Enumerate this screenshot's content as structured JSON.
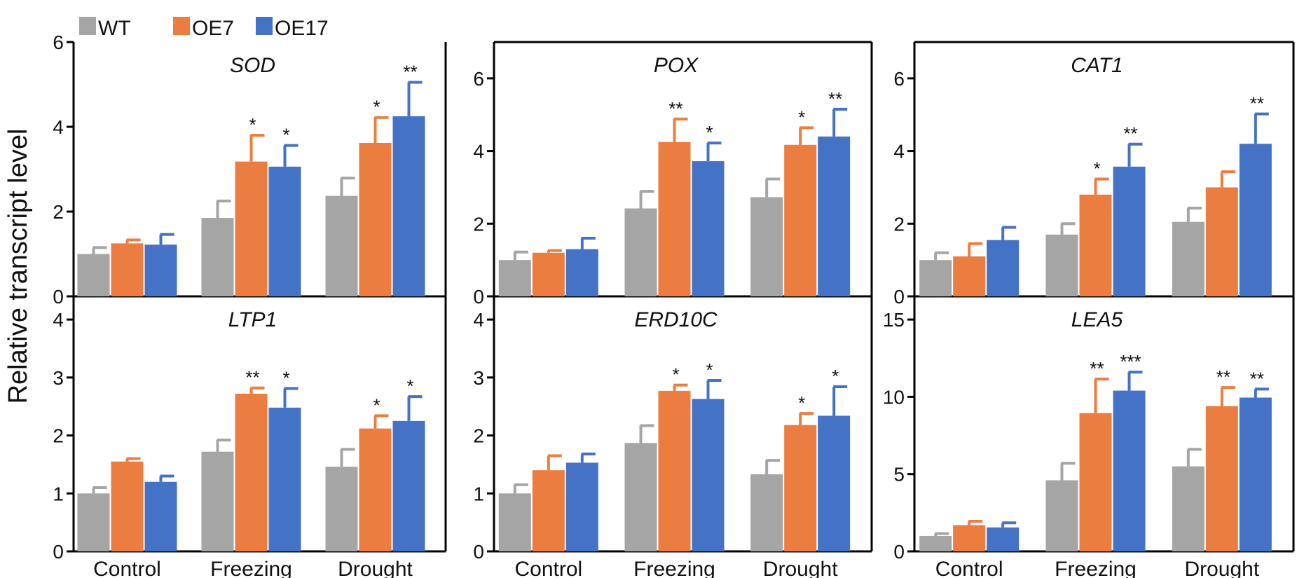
{
  "chart_data": [
    {
      "type": "bar",
      "title": "SOD",
      "categories": [
        "Control",
        "Freezing",
        "Drought"
      ],
      "ylim": [
        0,
        6
      ],
      "yticks": [
        0,
        2,
        4,
        6
      ],
      "series": [
        {
          "name": "WT",
          "values": [
            1.0,
            1.85,
            2.37
          ],
          "errors": [
            0.15,
            0.4,
            0.42
          ],
          "sig": [
            "",
            "",
            ""
          ]
        },
        {
          "name": "OE7",
          "values": [
            1.25,
            3.18,
            3.62
          ],
          "errors": [
            0.08,
            0.62,
            0.6
          ],
          "sig": [
            "",
            "*",
            "*"
          ]
        },
        {
          "name": "OE17",
          "values": [
            1.22,
            3.06,
            4.25
          ],
          "errors": [
            0.24,
            0.5,
            0.8
          ],
          "sig": [
            "",
            "*",
            "**"
          ]
        }
      ]
    },
    {
      "type": "bar",
      "title": "POX",
      "categories": [
        "Control",
        "Freezing",
        "Drought"
      ],
      "ylim": [
        0,
        7
      ],
      "yticks": [
        0,
        2,
        4,
        6
      ],
      "series": [
        {
          "name": "WT",
          "values": [
            1.0,
            2.42,
            2.73
          ],
          "errors": [
            0.22,
            0.47,
            0.5
          ],
          "sig": [
            "",
            "",
            ""
          ]
        },
        {
          "name": "OE7",
          "values": [
            1.2,
            4.25,
            4.17
          ],
          "errors": [
            0.06,
            0.63,
            0.47
          ],
          "sig": [
            "",
            "**",
            "*"
          ]
        },
        {
          "name": "OE17",
          "values": [
            1.3,
            3.72,
            4.4
          ],
          "errors": [
            0.3,
            0.5,
            0.75
          ],
          "sig": [
            "",
            "*",
            "**"
          ]
        }
      ]
    },
    {
      "type": "bar",
      "title": "CAT1",
      "categories": [
        "Control",
        "Freezing",
        "Drought"
      ],
      "ylim": [
        0,
        7
      ],
      "yticks": [
        0,
        2,
        4,
        6
      ],
      "series": [
        {
          "name": "WT",
          "values": [
            1.0,
            1.7,
            2.05
          ],
          "errors": [
            0.2,
            0.3,
            0.38
          ],
          "sig": [
            "",
            "",
            ""
          ]
        },
        {
          "name": "OE7",
          "values": [
            1.1,
            2.8,
            3.0
          ],
          "errors": [
            0.35,
            0.43,
            0.43
          ],
          "sig": [
            "",
            "*",
            ""
          ]
        },
        {
          "name": "OE17",
          "values": [
            1.55,
            3.57,
            4.2
          ],
          "errors": [
            0.35,
            0.62,
            0.82
          ],
          "sig": [
            "",
            "**",
            "**"
          ]
        }
      ]
    },
    {
      "type": "bar",
      "title": "LTP1",
      "categories": [
        "Control",
        "Freezing",
        "Drought"
      ],
      "ylim": [
        0,
        4.4
      ],
      "yticks": [
        0,
        1,
        2,
        3,
        4
      ],
      "series": [
        {
          "name": "WT",
          "values": [
            1.0,
            1.72,
            1.46
          ],
          "errors": [
            0.1,
            0.2,
            0.3
          ],
          "sig": [
            "",
            "",
            ""
          ]
        },
        {
          "name": "OE7",
          "values": [
            1.55,
            2.72,
            2.12
          ],
          "errors": [
            0.05,
            0.1,
            0.22
          ],
          "sig": [
            "",
            "**",
            "*"
          ]
        },
        {
          "name": "OE17",
          "values": [
            1.2,
            2.48,
            2.25
          ],
          "errors": [
            0.1,
            0.33,
            0.42
          ],
          "sig": [
            "",
            "*",
            "*"
          ]
        }
      ]
    },
    {
      "type": "bar",
      "title": "ERD10C",
      "categories": [
        "Control",
        "Freezing",
        "Drought"
      ],
      "ylim": [
        0,
        4.4
      ],
      "yticks": [
        0,
        1,
        2,
        3,
        4
      ],
      "series": [
        {
          "name": "WT",
          "values": [
            1.0,
            1.87,
            1.33
          ],
          "errors": [
            0.15,
            0.3,
            0.24
          ],
          "sig": [
            "",
            "",
            ""
          ]
        },
        {
          "name": "OE7",
          "values": [
            1.4,
            2.77,
            2.18
          ],
          "errors": [
            0.25,
            0.1,
            0.2
          ],
          "sig": [
            "",
            "*",
            "*"
          ]
        },
        {
          "name": "OE17",
          "values": [
            1.53,
            2.63,
            2.34
          ],
          "errors": [
            0.15,
            0.32,
            0.5
          ],
          "sig": [
            "",
            "*",
            "*"
          ]
        }
      ]
    },
    {
      "type": "bar",
      "title": "LEA5",
      "categories": [
        "Control",
        "Freezing",
        "Drought"
      ],
      "ylim": [
        0,
        16.5
      ],
      "yticks": [
        0,
        5,
        10,
        15
      ],
      "series": [
        {
          "name": "WT",
          "values": [
            1.0,
            4.6,
            5.5
          ],
          "errors": [
            0.15,
            1.1,
            1.1
          ],
          "sig": [
            "",
            "",
            ""
          ]
        },
        {
          "name": "OE7",
          "values": [
            1.7,
            8.95,
            9.4
          ],
          "errors": [
            0.25,
            2.2,
            1.2
          ],
          "sig": [
            "",
            "**",
            "**"
          ]
        },
        {
          "name": "OE17",
          "values": [
            1.55,
            10.4,
            9.95
          ],
          "errors": [
            0.3,
            1.2,
            0.55
          ],
          "sig": [
            "",
            "***",
            "**"
          ]
        }
      ]
    }
  ],
  "ylabel": "Relative transcript level",
  "legend": [
    {
      "name": "WT",
      "color": "#a5a5a5"
    },
    {
      "name": "OE7",
      "color": "#ec7d40"
    },
    {
      "name": "OE17",
      "color": "#4472c4"
    }
  ]
}
